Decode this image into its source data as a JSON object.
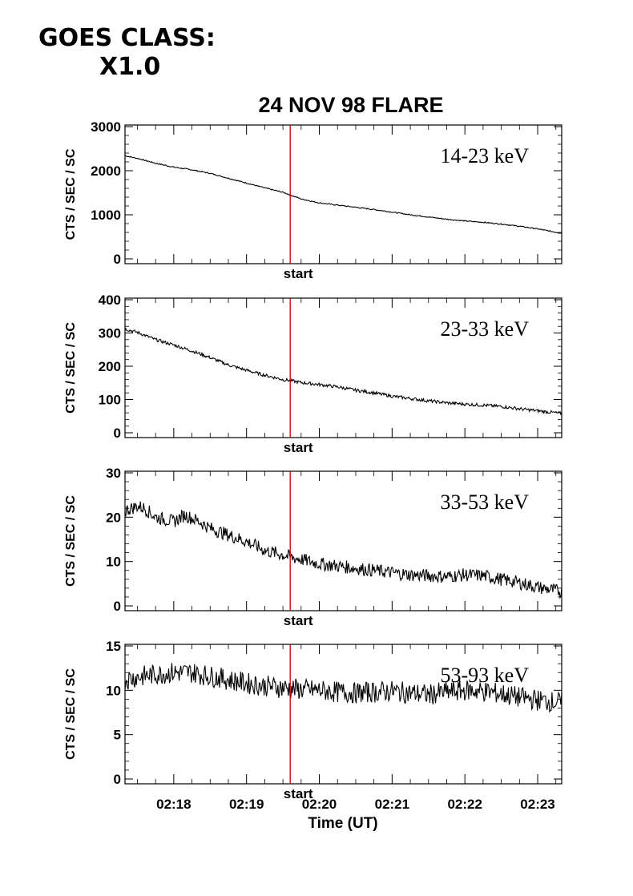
{
  "goes": {
    "line1": "GOES CLASS:",
    "line2": "X1.0"
  },
  "chart_data": {
    "type": "line",
    "title": "24 NOV 98 FLARE",
    "xlabel": "Time (UT)",
    "x_ticks": [
      "02:18",
      "02:19",
      "02:20",
      "02:21",
      "02:22",
      "02:23"
    ],
    "x_tick_minutes": [
      18,
      19,
      20,
      21,
      22,
      23
    ],
    "xlim_minutes": [
      17.33,
      23.33
    ],
    "start_marker_minutes": 19.6,
    "start_label": "start",
    "marker_color": "#c00000",
    "panels": [
      {
        "band": "14-23 keV",
        "ylabel": "CTS / SEC / SC",
        "ylim": [
          0,
          3000
        ],
        "yticks": [
          0,
          1000,
          2000,
          3000
        ],
        "series": [
          {
            "x": [
              17.33,
              17.5,
              17.75,
              18.0,
              18.25,
              18.5,
              18.75,
              19.0,
              19.25,
              19.5,
              19.6,
              19.75,
              20.0,
              20.25,
              20.5,
              20.75,
              21.0,
              21.25,
              21.5,
              21.75,
              22.0,
              22.25,
              22.5,
              22.75,
              23.0,
              23.33
            ],
            "y": [
              2340,
              2280,
              2170,
              2080,
              2020,
              1940,
              1830,
              1720,
              1610,
              1510,
              1450,
              1360,
              1270,
              1220,
              1170,
              1120,
              1060,
              1000,
              950,
              900,
              860,
              830,
              790,
              740,
              680,
              580
            ]
          }
        ]
      },
      {
        "band": "23-33 keV",
        "ylabel": "CTS / SEC / SC",
        "ylim": [
          0,
          400
        ],
        "yticks": [
          0,
          100,
          200,
          300,
          400
        ],
        "series": [
          {
            "x": [
              17.33,
              17.5,
              17.75,
              18.0,
              18.25,
              18.5,
              18.75,
              19.0,
              19.25,
              19.5,
              19.6,
              19.75,
              20.0,
              20.25,
              20.5,
              20.75,
              21.0,
              21.25,
              21.5,
              21.75,
              22.0,
              22.25,
              22.5,
              22.75,
              23.0,
              23.33
            ],
            "y": [
              312,
              302,
              280,
              264,
              246,
              226,
              204,
              188,
              173,
              160,
              157,
              151,
              145,
              138,
              128,
              120,
              110,
              103,
              96,
              90,
              86,
              83,
              79,
              72,
              66,
              58
            ]
          }
        ]
      },
      {
        "band": "33-53 keV",
        "ylabel": "CTS / SEC / SC",
        "ylim": [
          0,
          30
        ],
        "yticks": [
          0,
          10,
          20,
          30
        ],
        "series": [
          {
            "x": [
              17.33,
              17.5,
              17.6,
              17.75,
              18.0,
              18.15,
              18.35,
              18.5,
              18.75,
              19.0,
              19.25,
              19.5,
              19.6,
              19.75,
              20.0,
              20.25,
              20.5,
              20.75,
              21.0,
              21.25,
              21.5,
              21.75,
              22.0,
              22.25,
              22.5,
              22.75,
              23.0,
              23.33
            ],
            "y": [
              21.5,
              22.5,
              22.0,
              20.0,
              19.0,
              20.5,
              19.0,
              17.5,
              16.0,
              14.5,
              12.5,
              11.5,
              11.0,
              10.5,
              9.5,
              9.0,
              8.5,
              8.0,
              7.5,
              7.0,
              6.8,
              6.6,
              7.0,
              6.8,
              6.0,
              5.2,
              4.2,
              3.2
            ]
          }
        ]
      },
      {
        "band": "53-93 keV",
        "ylabel": "CTS / SEC / SC",
        "ylim": [
          0,
          15
        ],
        "yticks": [
          0,
          5,
          10,
          15
        ],
        "series": [
          {
            "x": [
              17.33,
              17.5,
              17.75,
              18.0,
              18.25,
              18.5,
              18.75,
              19.0,
              19.25,
              19.5,
              19.6,
              19.75,
              20.0,
              20.25,
              20.5,
              20.75,
              21.0,
              21.25,
              21.5,
              21.75,
              22.0,
              22.25,
              22.5,
              22.75,
              23.0,
              23.33
            ],
            "y": [
              11.2,
              11.5,
              11.8,
              12.0,
              12.0,
              11.6,
              11.2,
              10.8,
              10.5,
              10.3,
              10.2,
              10.1,
              10.0,
              9.8,
              9.7,
              9.8,
              9.9,
              9.7,
              9.5,
              9.8,
              10.0,
              9.9,
              9.6,
              9.2,
              8.9,
              8.6
            ]
          }
        ]
      }
    ]
  }
}
